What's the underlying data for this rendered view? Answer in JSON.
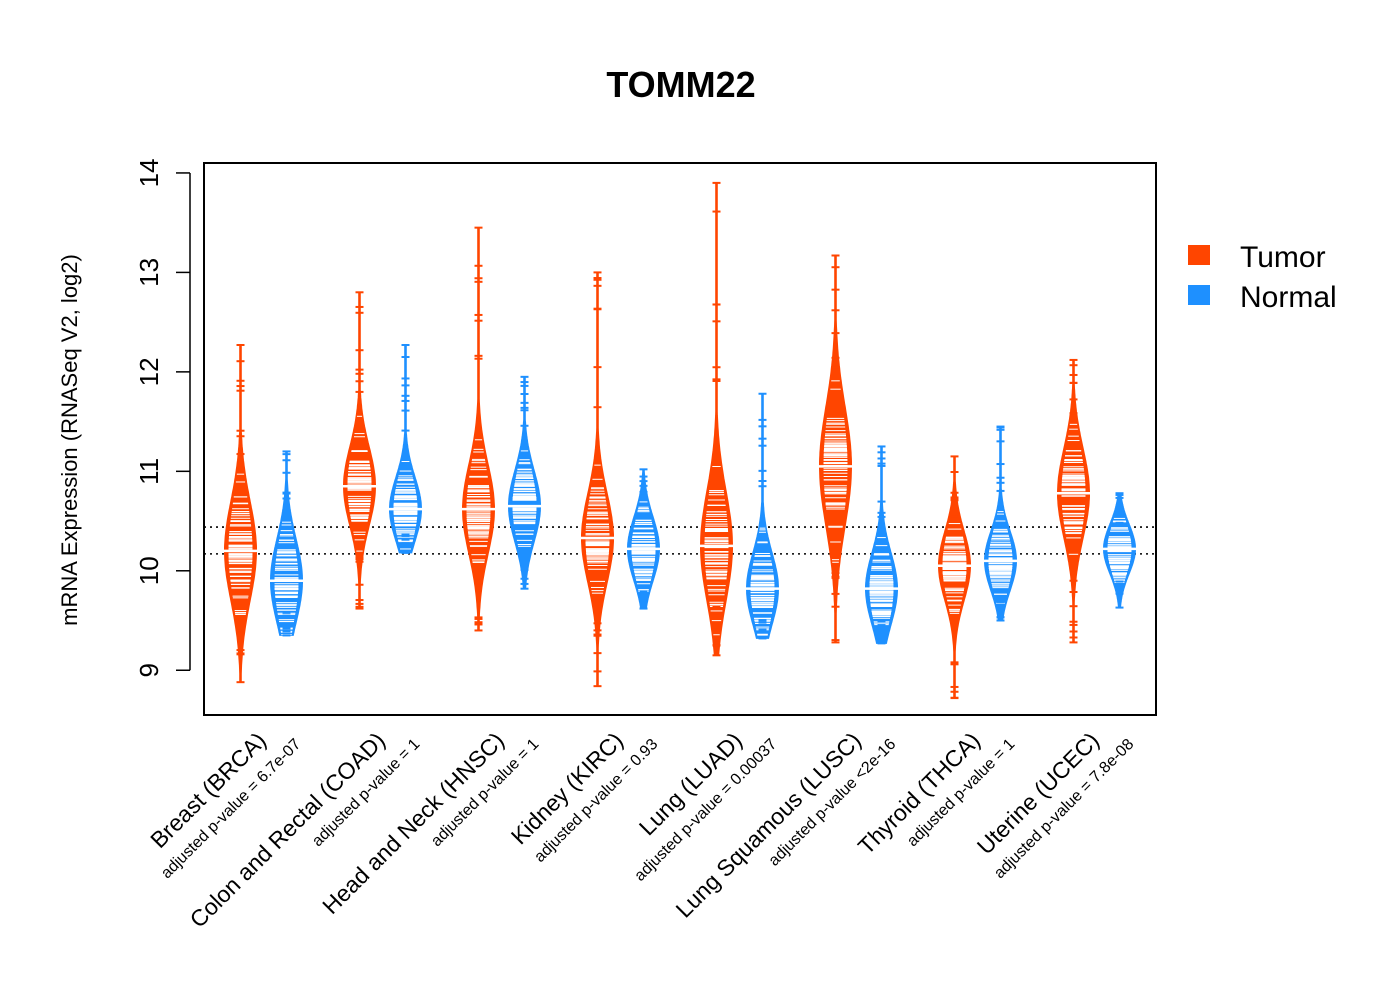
{
  "chart_data": {
    "type": "beanplot",
    "title": "TOMM22",
    "ylabel": "mRNA Expression (RNASeq V2, log2)",
    "xlabel": "",
    "ylim": [
      8.55,
      14.1
    ],
    "yticks": [
      "9",
      "10",
      "11",
      "12",
      "13",
      "14"
    ],
    "reference_lines": [
      10.17,
      10.44
    ],
    "legend": {
      "position": "right",
      "entries": [
        "Tumor",
        "Normal"
      ]
    },
    "colors": {
      "Tumor": "#FF4500",
      "Normal": "#1E90FF"
    },
    "categories": [
      {
        "label": "Breast (BRCA)",
        "pvalue_label": "adjusted p-value = 6.7e-07",
        "tumor": {
          "median": 10.2,
          "min": 8.88,
          "max": 12.27,
          "spread": 0.5
        },
        "normal": {
          "median": 9.9,
          "min": 9.35,
          "max": 11.2,
          "spread": 0.42
        }
      },
      {
        "label": "Colon and Rectal (COAD)",
        "pvalue_label": "adjusted p-value = 1",
        "tumor": {
          "median": 10.85,
          "min": 9.62,
          "max": 12.8,
          "spread": 0.4
        },
        "normal": {
          "median": 10.62,
          "min": 10.18,
          "max": 12.27,
          "spread": 0.32
        }
      },
      {
        "label": "Head and Neck (HNSC)",
        "pvalue_label": "adjusted p-value = 1",
        "tumor": {
          "median": 10.62,
          "min": 9.4,
          "max": 13.45,
          "spread": 0.45
        },
        "normal": {
          "median": 10.65,
          "min": 9.82,
          "max": 11.95,
          "spread": 0.36
        }
      },
      {
        "label": "Kidney (KIRC)",
        "pvalue_label": "adjusted p-value = 0.93",
        "tumor": {
          "median": 10.33,
          "min": 8.84,
          "max": 13.0,
          "spread": 0.45
        },
        "normal": {
          "median": 10.22,
          "min": 9.62,
          "max": 11.02,
          "spread": 0.32
        }
      },
      {
        "label": "Lung (LUAD)",
        "pvalue_label": "adjusted p-value = 0.00037",
        "tumor": {
          "median": 10.25,
          "min": 9.15,
          "max": 13.9,
          "spread": 0.55
        },
        "normal": {
          "median": 9.82,
          "min": 9.32,
          "max": 11.78,
          "spread": 0.36
        }
      },
      {
        "label": "Lung Squamous (LUSC)",
        "pvalue_label": "adjusted p-value <2e-16",
        "tumor": {
          "median": 11.05,
          "min": 9.28,
          "max": 13.17,
          "spread": 0.6
        },
        "normal": {
          "median": 9.82,
          "min": 9.27,
          "max": 11.25,
          "spread": 0.36
        }
      },
      {
        "label": "Thyroid (THCA)",
        "pvalue_label": "adjusted p-value = 1",
        "tumor": {
          "median": 10.05,
          "min": 8.72,
          "max": 11.15,
          "spread": 0.35
        },
        "normal": {
          "median": 10.1,
          "min": 9.5,
          "max": 11.45,
          "spread": 0.3
        }
      },
      {
        "label": "Uterine (UCEC)",
        "pvalue_label": "adjusted p-value = 7.8e-08",
        "tumor": {
          "median": 10.78,
          "min": 9.28,
          "max": 12.12,
          "spread": 0.45
        },
        "normal": {
          "median": 10.22,
          "min": 9.63,
          "max": 10.78,
          "spread": 0.25
        }
      }
    ]
  }
}
